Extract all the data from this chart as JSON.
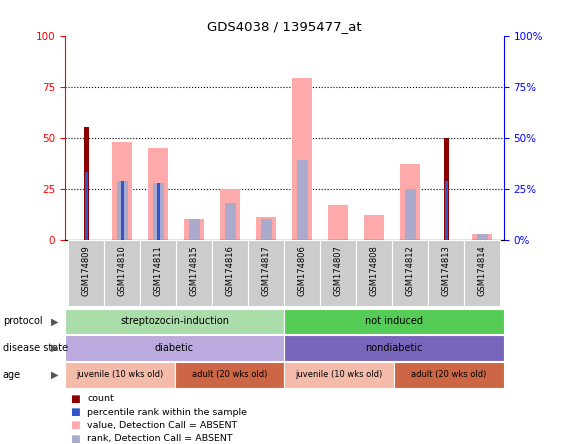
{
  "title": "GDS4038 / 1395477_at",
  "samples": [
    "GSM174809",
    "GSM174810",
    "GSM174811",
    "GSM174815",
    "GSM174816",
    "GSM174817",
    "GSM174806",
    "GSM174807",
    "GSM174808",
    "GSM174812",
    "GSM174813",
    "GSM174814"
  ],
  "count_values": [
    55,
    0,
    0,
    0,
    0,
    0,
    0,
    0,
    0,
    0,
    50,
    0
  ],
  "percentile_values": [
    33,
    29,
    28,
    0,
    0,
    0,
    0,
    0,
    0,
    0,
    29,
    0
  ],
  "value_absent": [
    0,
    48,
    45,
    10,
    25,
    11,
    79,
    17,
    12,
    37,
    0,
    3
  ],
  "rank_absent": [
    0,
    29,
    28,
    10,
    18,
    10,
    39,
    0,
    0,
    25,
    0,
    3
  ],
  "ylim": [
    0,
    100
  ],
  "yticks": [
    0,
    25,
    50,
    75,
    100
  ],
  "color_count": "#8B0000",
  "color_percentile": "#3355CC",
  "color_value_absent": "#FFAAAA",
  "color_rank_absent": "#AAAACC",
  "protocol_groups": [
    {
      "label": "streptozocin-induction",
      "start": 0,
      "end": 6,
      "color": "#AADDAA"
    },
    {
      "label": "not induced",
      "start": 6,
      "end": 12,
      "color": "#55CC55"
    }
  ],
  "disease_groups": [
    {
      "label": "diabetic",
      "start": 0,
      "end": 6,
      "color": "#BBAADD"
    },
    {
      "label": "nondiabetic",
      "start": 6,
      "end": 12,
      "color": "#7766BB"
    }
  ],
  "age_groups": [
    {
      "label": "juvenile (10 wks old)",
      "start": 0,
      "end": 3,
      "color": "#F4BBAA"
    },
    {
      "label": "adult (20 wks old)",
      "start": 3,
      "end": 6,
      "color": "#CC6644"
    },
    {
      "label": "juvenile (10 wks old)",
      "start": 6,
      "end": 9,
      "color": "#F4BBAA"
    },
    {
      "label": "adult (20 wks old)",
      "start": 9,
      "end": 12,
      "color": "#CC6644"
    }
  ],
  "legend_items": [
    {
      "label": "count",
      "color": "#8B0000"
    },
    {
      "label": "percentile rank within the sample",
      "color": "#3355CC"
    },
    {
      "label": "value, Detection Call = ABSENT",
      "color": "#FFAAAA"
    },
    {
      "label": "rank, Detection Call = ABSENT",
      "color": "#AAAACC"
    }
  ]
}
